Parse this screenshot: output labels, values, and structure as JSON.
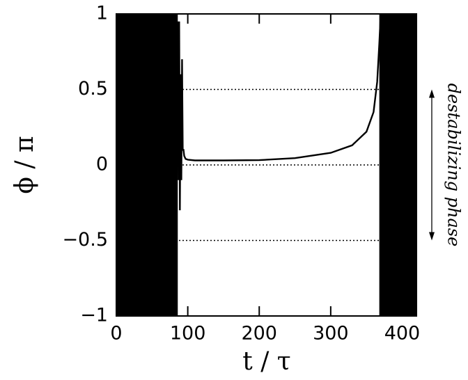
{
  "chart_data": {
    "type": "line",
    "xlabel": "t  /  τ",
    "ylabel": "ϕ  /  π",
    "xlim": [
      0,
      420
    ],
    "ylim": [
      -1,
      1
    ],
    "xticks": [
      0,
      100,
      200,
      300,
      400
    ],
    "yticks": [
      {
        "value": -1,
        "label": "−1"
      },
      {
        "value": -0.5,
        "label": "−0.5"
      },
      0,
      0.5,
      1
    ],
    "hlines": [
      -0.5,
      0,
      0.5
    ],
    "bands": [
      {
        "x": [
          0,
          86
        ]
      },
      {
        "x": [
          368,
          420
        ]
      }
    ],
    "series": [
      {
        "color": "#000000",
        "x": [
          86,
          87,
          88,
          89,
          90,
          91,
          92,
          93,
          94,
          95,
          97,
          100,
          110,
          150,
          200,
          250,
          300,
          330,
          350,
          360,
          365,
          368,
          370
        ],
        "values": [
          0.95,
          -0.1,
          0.95,
          -0.3,
          0.6,
          -0.1,
          0.7,
          0.1,
          0.1,
          0.06,
          0.04,
          0.035,
          0.03,
          0.03,
          0.032,
          0.045,
          0.08,
          0.13,
          0.22,
          0.35,
          0.55,
          0.8,
          1
        ]
      }
    ],
    "annotation": {
      "text": "destabilizing phase",
      "yrange": [
        -0.5,
        0.5
      ]
    }
  }
}
